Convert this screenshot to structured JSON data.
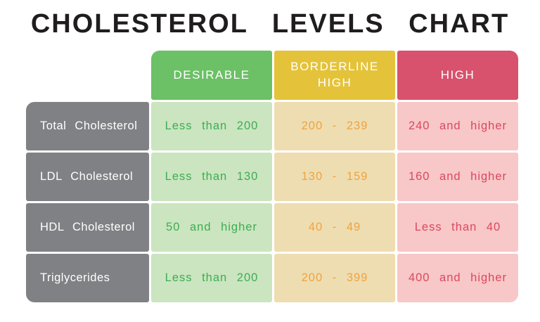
{
  "title": "CHOLESTEROL LEVELS CHART",
  "chart_data": {
    "type": "table",
    "title": "CHOLESTEROL LEVELS CHART",
    "column_headers": [
      "DESIRABLE",
      "BORDERLINE HIGH",
      "HIGH"
    ],
    "row_headers": [
      "Total Cholesterol",
      "LDL Cholesterol",
      "HDL Cholesterol",
      "Triglycerides"
    ],
    "rows": [
      [
        "Less than 200",
        "200 - 239",
        "240 and higher"
      ],
      [
        "Less than 130",
        "130 - 159",
        "160 and higher"
      ],
      [
        "50 and higher",
        "40 - 49",
        "Less than 40"
      ],
      [
        "Less than 200",
        "200 - 399",
        "400 and higher"
      ]
    ],
    "colors": {
      "title_text": "#1f1d1e",
      "header_text": "#ffffff",
      "desirable_header": "#6cc066",
      "borderline_header": "#e4c33a",
      "high_header": "#d8516d",
      "row_header_bg": "#808184",
      "desirable_cell": "#cbe5c0",
      "borderline_cell": "#eeddb1",
      "high_cell": "#f8c7c8",
      "desirable_text": "#3dad53",
      "borderline_text": "#f0a340",
      "high_text": "#d9495f"
    }
  }
}
